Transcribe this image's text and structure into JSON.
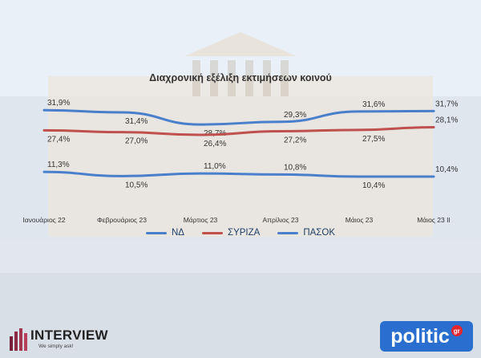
{
  "chart_data": {
    "type": "line",
    "title": "Διαχρονική εξέλιξη εκτιμήσεων κοινού",
    "categories": [
      "Ιανουάριος 22",
      "Φεβρουάριος 23",
      "Μάρτιος 23",
      "Απρίλιος 23",
      "Μάιος 23",
      "Μάιος 23 ΙΙ"
    ],
    "series": [
      {
        "name": "ΝΔ",
        "color": "#4a7fcc",
        "values": [
          31.9,
          31.4,
          28.7,
          29.3,
          31.6,
          31.7
        ],
        "labels": [
          "31,9%",
          "31,4%",
          "28,7%",
          "29,3%",
          "31,6%",
          "31,7%"
        ]
      },
      {
        "name": "ΣΥΡΙΖΑ",
        "color": "#c0504d",
        "values": [
          27.4,
          27.0,
          26.4,
          27.2,
          27.5,
          28.1
        ],
        "labels": [
          "27,4%",
          "27,0%",
          "26,4%",
          "27,2%",
          "27,5%",
          "28,1%"
        ]
      },
      {
        "name": "ΠΑΣΟΚ",
        "color": "#4a7fcc",
        "values": [
          11.3,
          10.5,
          11.0,
          10.8,
          10.4,
          10.4
        ],
        "labels": [
          "11,3%",
          "10,5%",
          "11,0%",
          "10,8%",
          "10,4%",
          "10,4%"
        ]
      }
    ],
    "legend_position": "bottom",
    "grid": false
  },
  "branding": {
    "interview": "INTERVIEW",
    "interview_tagline": "We simply ask!",
    "politic": "politic",
    "politic_suffix": "gr"
  }
}
